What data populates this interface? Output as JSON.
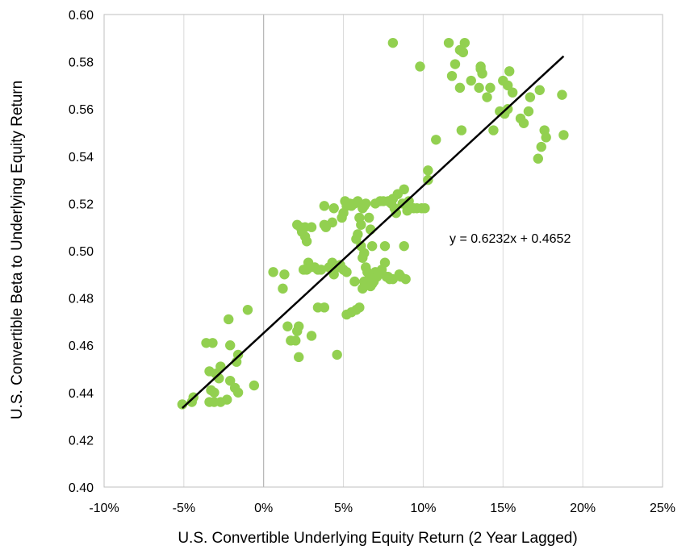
{
  "chart_data": {
    "type": "scatter",
    "title": "",
    "xlabel": "U.S. Convertible Underlying Equity Return (2 Year Lagged)",
    "ylabel": "U.S. Convertible Beta to Underlying Equity Return",
    "xlim": [
      -0.1,
      0.25
    ],
    "ylim": [
      0.4,
      0.6
    ],
    "x_ticks": [
      -0.1,
      -0.05,
      0,
      0.05,
      0.1,
      0.15,
      0.2,
      0.25
    ],
    "x_tick_labels": [
      "-10%",
      "-5%",
      "0%",
      "5%",
      "10%",
      "15%",
      "20%",
      "25%"
    ],
    "y_ticks": [
      0.4,
      0.42,
      0.44,
      0.46,
      0.48,
      0.5,
      0.52,
      0.54,
      0.56,
      0.58,
      0.6
    ],
    "y_tick_labels": [
      "0.40",
      "0.42",
      "0.44",
      "0.46",
      "0.48",
      "0.50",
      "0.52",
      "0.54",
      "0.56",
      "0.58",
      "0.60"
    ],
    "grid": "vertical",
    "point_color": "#92d050",
    "trendline": {
      "equation": "y = 0.6232x + 0.4652",
      "slope": 0.6232,
      "intercept": 0.4652,
      "x_range": [
        -0.051,
        0.188
      ],
      "color": "#000000"
    },
    "points": [
      [
        -0.051,
        0.435
      ],
      [
        -0.045,
        0.436
      ],
      [
        -0.044,
        0.438
      ],
      [
        -0.036,
        0.461
      ],
      [
        -0.032,
        0.461
      ],
      [
        -0.034,
        0.449
      ],
      [
        -0.03,
        0.448
      ],
      [
        -0.028,
        0.446
      ],
      [
        -0.033,
        0.441
      ],
      [
        -0.031,
        0.44
      ],
      [
        -0.034,
        0.436
      ],
      [
        -0.031,
        0.436
      ],
      [
        -0.027,
        0.436
      ],
      [
        -0.023,
        0.437
      ],
      [
        -0.027,
        0.451
      ],
      [
        -0.022,
        0.471
      ],
      [
        -0.021,
        0.46
      ],
      [
        -0.017,
        0.453
      ],
      [
        -0.016,
        0.456
      ],
      [
        -0.021,
        0.445
      ],
      [
        -0.018,
        0.442
      ],
      [
        -0.016,
        0.44
      ],
      [
        -0.01,
        0.475
      ],
      [
        -0.006,
        0.443
      ],
      [
        0.006,
        0.491
      ],
      [
        0.013,
        0.49
      ],
      [
        0.012,
        0.484
      ],
      [
        0.015,
        0.468
      ],
      [
        0.017,
        0.462
      ],
      [
        0.02,
        0.462
      ],
      [
        0.021,
        0.466
      ],
      [
        0.022,
        0.468
      ],
      [
        0.022,
        0.455
      ],
      [
        0.021,
        0.511
      ],
      [
        0.023,
        0.51
      ],
      [
        0.024,
        0.508
      ],
      [
        0.026,
        0.51
      ],
      [
        0.026,
        0.506
      ],
      [
        0.027,
        0.504
      ],
      [
        0.025,
        0.492
      ],
      [
        0.027,
        0.492
      ],
      [
        0.028,
        0.495
      ],
      [
        0.029,
        0.493
      ],
      [
        0.03,
        0.51
      ],
      [
        0.032,
        0.493
      ],
      [
        0.034,
        0.492
      ],
      [
        0.036,
        0.492
      ],
      [
        0.034,
        0.476
      ],
      [
        0.038,
        0.476
      ],
      [
        0.03,
        0.464
      ],
      [
        0.038,
        0.511
      ],
      [
        0.039,
        0.51
      ],
      [
        0.038,
        0.519
      ],
      [
        0.041,
        0.493
      ],
      [
        0.043,
        0.495
      ],
      [
        0.044,
        0.49
      ],
      [
        0.043,
        0.512
      ],
      [
        0.044,
        0.518
      ],
      [
        0.046,
        0.493
      ],
      [
        0.048,
        0.494
      ],
      [
        0.046,
        0.456
      ],
      [
        0.049,
        0.514
      ],
      [
        0.05,
        0.516
      ],
      [
        0.052,
        0.519
      ],
      [
        0.051,
        0.521
      ],
      [
        0.05,
        0.492
      ],
      [
        0.052,
        0.491
      ],
      [
        0.054,
        0.52
      ],
      [
        0.055,
        0.519
      ],
      [
        0.057,
        0.52
      ],
      [
        0.059,
        0.521
      ],
      [
        0.052,
        0.473
      ],
      [
        0.055,
        0.474
      ],
      [
        0.058,
        0.475
      ],
      [
        0.06,
        0.476
      ],
      [
        0.057,
        0.487
      ],
      [
        0.058,
        0.505
      ],
      [
        0.059,
        0.507
      ],
      [
        0.06,
        0.514
      ],
      [
        0.061,
        0.511
      ],
      [
        0.062,
        0.518
      ],
      [
        0.063,
        0.519
      ],
      [
        0.064,
        0.52
      ],
      [
        0.061,
        0.502
      ],
      [
        0.062,
        0.497
      ],
      [
        0.063,
        0.499
      ],
      [
        0.064,
        0.493
      ],
      [
        0.065,
        0.491
      ],
      [
        0.066,
        0.514
      ],
      [
        0.067,
        0.509
      ],
      [
        0.068,
        0.502
      ],
      [
        0.062,
        0.484
      ],
      [
        0.063,
        0.487
      ],
      [
        0.065,
        0.486
      ],
      [
        0.066,
        0.488
      ],
      [
        0.067,
        0.485
      ],
      [
        0.068,
        0.486
      ],
      [
        0.069,
        0.487
      ],
      [
        0.07,
        0.52
      ],
      [
        0.07,
        0.491
      ],
      [
        0.071,
        0.489
      ],
      [
        0.072,
        0.49
      ],
      [
        0.073,
        0.521
      ],
      [
        0.074,
        0.492
      ],
      [
        0.075,
        0.521
      ],
      [
        0.076,
        0.495
      ],
      [
        0.076,
        0.502
      ],
      [
        0.077,
        0.489
      ],
      [
        0.078,
        0.489
      ],
      [
        0.078,
        0.521
      ],
      [
        0.08,
        0.52
      ],
      [
        0.079,
        0.488
      ],
      [
        0.081,
        0.522
      ],
      [
        0.081,
        0.488
      ],
      [
        0.082,
        0.518
      ],
      [
        0.083,
        0.516
      ],
      [
        0.084,
        0.524
      ],
      [
        0.085,
        0.49
      ],
      [
        0.086,
        0.489
      ],
      [
        0.087,
        0.52
      ],
      [
        0.088,
        0.502
      ],
      [
        0.088,
        0.526
      ],
      [
        0.089,
        0.488
      ],
      [
        0.09,
        0.517
      ],
      [
        0.091,
        0.521
      ],
      [
        0.094,
        0.518
      ],
      [
        0.096,
        0.518
      ],
      [
        0.099,
        0.518
      ],
      [
        0.101,
        0.518
      ],
      [
        0.103,
        0.53
      ],
      [
        0.103,
        0.534
      ],
      [
        0.108,
        0.547
      ],
      [
        0.081,
        0.588
      ],
      [
        0.098,
        0.578
      ],
      [
        0.116,
        0.588
      ],
      [
        0.126,
        0.588
      ],
      [
        0.118,
        0.574
      ],
      [
        0.12,
        0.579
      ],
      [
        0.123,
        0.585
      ],
      [
        0.125,
        0.584
      ],
      [
        0.123,
        0.569
      ],
      [
        0.124,
        0.551
      ],
      [
        0.13,
        0.572
      ],
      [
        0.135,
        0.569
      ],
      [
        0.136,
        0.577
      ],
      [
        0.136,
        0.578
      ],
      [
        0.137,
        0.575
      ],
      [
        0.14,
        0.565
      ],
      [
        0.142,
        0.569
      ],
      [
        0.144,
        0.551
      ],
      [
        0.148,
        0.559
      ],
      [
        0.15,
        0.572
      ],
      [
        0.151,
        0.558
      ],
      [
        0.153,
        0.56
      ],
      [
        0.153,
        0.57
      ],
      [
        0.154,
        0.576
      ],
      [
        0.156,
        0.567
      ],
      [
        0.161,
        0.556
      ],
      [
        0.163,
        0.554
      ],
      [
        0.166,
        0.559
      ],
      [
        0.167,
        0.565
      ],
      [
        0.172,
        0.539
      ],
      [
        0.173,
        0.568
      ],
      [
        0.174,
        0.544
      ],
      [
        0.176,
        0.551
      ],
      [
        0.177,
        0.548
      ],
      [
        0.187,
        0.566
      ],
      [
        0.188,
        0.549
      ]
    ]
  }
}
